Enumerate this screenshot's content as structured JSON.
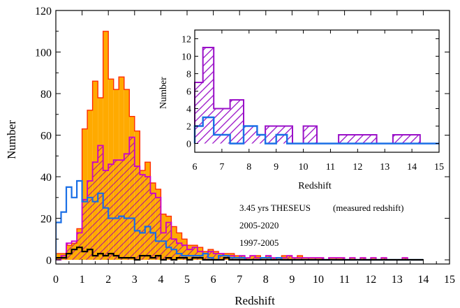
{
  "chart_data": [
    {
      "type": "bar",
      "subtype": "step-histogram",
      "title": "",
      "xlabel": "Redshift",
      "ylabel": "Number",
      "xlim": [
        0,
        15
      ],
      "ylim": [
        -2,
        120
      ],
      "xticks": [
        "0",
        "1",
        "2",
        "3",
        "4",
        "5",
        "6",
        "7",
        "8",
        "9",
        "10",
        "11",
        "12",
        "13",
        "14",
        "15"
      ],
      "yticks": [
        "0",
        "20",
        "40",
        "60",
        "80",
        "100",
        "120"
      ],
      "bin_width": 0.2,
      "bin_start": 0,
      "series": [
        {
          "name": "3.45 yrs THESEUS",
          "color": "#ff2a00",
          "fill": "#ffaa00",
          "edge": "#e0007a",
          "values": [
            3,
            3,
            7,
            8,
            15,
            63,
            72,
            86,
            78,
            110,
            87,
            82,
            88,
            82,
            69,
            62,
            43,
            47,
            37,
            34,
            22,
            21,
            16,
            13,
            10,
            7,
            7,
            6,
            4,
            5,
            4,
            3,
            3,
            3,
            2,
            2,
            1,
            2,
            2,
            1,
            2,
            1,
            1,
            2,
            2,
            1,
            2,
            1,
            1,
            1,
            1,
            0,
            1,
            1,
            1,
            0,
            1,
            0,
            1,
            0,
            1,
            0,
            1,
            0,
            0,
            0,
            1,
            0,
            0,
            0
          ]
        },
        {
          "name": "(measured redshift)",
          "color": "#cc00cc",
          "hatch": "#9a10c8",
          "values": [
            0,
            2,
            8,
            9,
            13,
            29,
            38,
            47,
            55,
            43,
            46,
            48,
            48,
            51,
            59,
            45,
            41,
            40,
            32,
            30,
            13,
            18,
            10,
            8,
            7,
            5,
            6,
            4,
            3,
            4,
            3,
            3,
            2,
            2,
            1,
            2,
            1,
            2,
            1,
            1,
            2,
            1,
            1,
            1,
            2,
            1,
            1,
            1,
            1,
            1,
            1,
            0,
            1,
            1,
            1,
            0,
            1,
            0,
            1,
            0,
            1,
            0,
            1,
            0,
            0,
            0,
            1,
            0,
            0,
            0
          ]
        },
        {
          "name": "2005-2020",
          "color": "#1a6fe6",
          "values": [
            18,
            23,
            35,
            30,
            38,
            28,
            30,
            28,
            32,
            25,
            20,
            20,
            21,
            20,
            20,
            14,
            13,
            16,
            13,
            9,
            9,
            6,
            5,
            3,
            2,
            2,
            2,
            2,
            3,
            1,
            0,
            2,
            2,
            1,
            1,
            1,
            0,
            0,
            0,
            1,
            1,
            0,
            1,
            0,
            0,
            0,
            0,
            0,
            0,
            0,
            0,
            0,
            0,
            0,
            0,
            0,
            0,
            0,
            0,
            0,
            0,
            0,
            0,
            0,
            0,
            0,
            0,
            0,
            0,
            0
          ]
        },
        {
          "name": "1997-2005",
          "color": "#000000",
          "values": [
            1,
            1,
            3,
            5,
            6,
            4,
            5,
            2,
            3,
            2,
            3,
            2,
            1,
            1,
            1,
            0,
            2,
            2,
            1,
            2,
            0,
            1,
            0,
            1,
            1,
            0,
            1,
            1,
            0,
            0,
            0,
            0,
            1,
            0,
            0,
            0,
            0,
            0,
            0,
            0,
            0,
            0,
            0,
            0,
            0,
            0,
            0,
            0,
            0,
            0,
            0,
            0,
            0,
            0,
            0,
            0,
            0,
            0,
            0,
            0,
            0,
            0,
            0,
            0,
            0,
            0,
            0,
            0,
            0,
            0
          ]
        }
      ],
      "legend": {
        "placement": "center-right",
        "entries": [
          {
            "label": "3.45 yrs THESEUS",
            "color": "#ff2a00"
          },
          {
            "label": "(measured redshift)",
            "color": "#cc00cc"
          },
          {
            "label": "2005-2020",
            "color": "#1a6fe6"
          },
          {
            "label": "1997-2005",
            "color": "#000000"
          }
        ]
      }
    },
    {
      "type": "bar",
      "subtype": "step-histogram-inset",
      "xlabel": "Redshift",
      "ylabel": "Number",
      "xlim": [
        6,
        15
      ],
      "ylim": [
        -1,
        13
      ],
      "xticks": [
        "6",
        "7",
        "8",
        "9",
        "10",
        "11",
        "12",
        "13",
        "14",
        "15"
      ],
      "yticks": [
        "0",
        "2",
        "4",
        "6",
        "8",
        "10",
        "12"
      ],
      "series": [
        {
          "name": "(measured redshift)",
          "color": "#9a10c8",
          "bins": [
            [
              6.0,
              6.3,
              7
            ],
            [
              6.3,
              6.7,
              11
            ],
            [
              6.7,
              7.3,
              4
            ],
            [
              7.3,
              7.8,
              5
            ],
            [
              7.8,
              8.3,
              2
            ],
            [
              8.3,
              8.6,
              1
            ],
            [
              8.6,
              9.6,
              2
            ],
            [
              9.6,
              10.0,
              0
            ],
            [
              10.0,
              10.5,
              2
            ],
            [
              10.5,
              11.3,
              0
            ],
            [
              11.3,
              12.7,
              1
            ],
            [
              12.7,
              13.3,
              0
            ],
            [
              13.3,
              14.3,
              1
            ]
          ]
        },
        {
          "name": "2005-2020",
          "color": "#1a6fe6",
          "bins": [
            [
              6.0,
              6.3,
              2
            ],
            [
              6.3,
              6.7,
              3
            ],
            [
              6.7,
              7.3,
              1
            ],
            [
              7.3,
              7.8,
              0
            ],
            [
              7.8,
              8.3,
              2
            ],
            [
              8.3,
              8.6,
              1
            ],
            [
              8.6,
              9.0,
              0
            ],
            [
              9.0,
              9.4,
              1
            ],
            [
              9.4,
              15,
              0
            ]
          ]
        }
      ]
    }
  ]
}
